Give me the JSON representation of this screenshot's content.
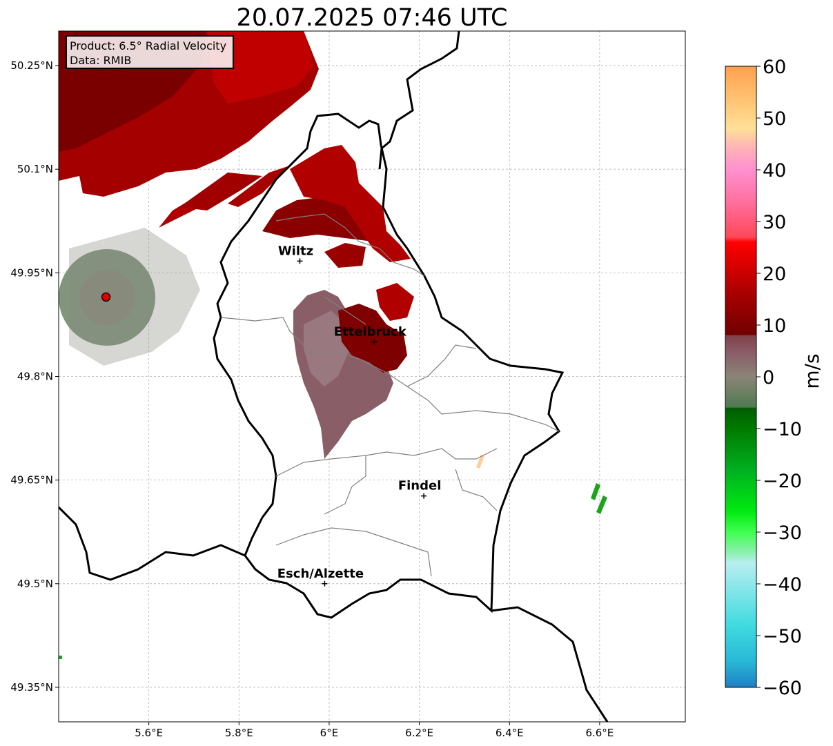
{
  "title": "20.07.2025 07:46 UTC",
  "info": {
    "product": "Product: 6.5° Radial Velocity",
    "source": "Data: RMIB"
  },
  "map": {
    "lon_range": [
      5.4,
      6.79
    ],
    "lat_range": [
      49.3,
      50.3
    ],
    "lon_ticks": [
      {
        "value": 5.6,
        "label": "5.6°E"
      },
      {
        "value": 5.8,
        "label": "5.8°E"
      },
      {
        "value": 6.0,
        "label": "6°E"
      },
      {
        "value": 6.2,
        "label": "6.2°E"
      },
      {
        "value": 6.4,
        "label": "6.4°E"
      },
      {
        "value": 6.6,
        "label": "6.6°E"
      }
    ],
    "lat_ticks": [
      {
        "value": 50.25,
        "label": "50.25°N"
      },
      {
        "value": 50.1,
        "label": "50.1°N"
      },
      {
        "value": 49.95,
        "label": "49.95°N"
      },
      {
        "value": 49.8,
        "label": "49.8°N"
      },
      {
        "value": 49.65,
        "label": "49.65°N"
      },
      {
        "value": 49.5,
        "label": "49.5°N"
      },
      {
        "value": 49.35,
        "label": "49.35°N"
      }
    ],
    "cities": [
      {
        "name": "Wiltz",
        "lon": 5.935,
        "lat": 49.967
      },
      {
        "name": "Ettelbruck",
        "lon": 6.1,
        "lat": 49.85
      },
      {
        "name": "Findel",
        "lon": 6.21,
        "lat": 49.627
      },
      {
        "name": "Esch/Alzette",
        "lon": 5.99,
        "lat": 49.5
      }
    ],
    "radar_site": {
      "lon": 5.505,
      "lat": 49.915,
      "color": "#e00000"
    }
  },
  "colorbar": {
    "unit": "m/s",
    "range": [
      -60,
      60
    ],
    "tick_labels": [
      "60",
      "50",
      "40",
      "30",
      "20",
      "10",
      "0",
      "−10",
      "−20",
      "−30",
      "−40",
      "−50",
      "−60"
    ],
    "stops": [
      {
        "v": -60,
        "c": "#1f7fc4"
      },
      {
        "v": -55,
        "c": "#28b8d6"
      },
      {
        "v": -48,
        "c": "#3fdbe0"
      },
      {
        "v": -36,
        "c": "#b8eef0"
      },
      {
        "v": -34,
        "c": "#8ef0b0"
      },
      {
        "v": -30,
        "c": "#3fff50"
      },
      {
        "v": -26,
        "c": "#00ea10"
      },
      {
        "v": -18,
        "c": "#00b020"
      },
      {
        "v": -10,
        "c": "#007a00"
      },
      {
        "v": -6,
        "c": "#005c00"
      },
      {
        "v": -5.9,
        "c": "#4f7a50"
      },
      {
        "v": 0,
        "c": "#8b8478"
      },
      {
        "v": 5,
        "c": "#8a5a66"
      },
      {
        "v": 8,
        "c": "#804048"
      },
      {
        "v": 8.1,
        "c": "#700000"
      },
      {
        "v": 16,
        "c": "#a80000"
      },
      {
        "v": 26,
        "c": "#ff0000"
      },
      {
        "v": 27,
        "c": "#ff4858"
      },
      {
        "v": 34,
        "c": "#ff70a0"
      },
      {
        "v": 40,
        "c": "#ff90d0"
      },
      {
        "v": 44,
        "c": "#ffb0b8"
      },
      {
        "v": 48,
        "c": "#ffe098"
      },
      {
        "v": 54,
        "c": "#ffc070"
      },
      {
        "v": 60,
        "c": "#ffa050"
      }
    ]
  },
  "palette": {
    "dark_red": "#7a0000",
    "red": "#b00000",
    "bright_red": "#d80000",
    "mauve": "#8a5e66",
    "grey_green": "#6a8060",
    "green": "#1aa51a",
    "peach": "#ffcf9a"
  }
}
